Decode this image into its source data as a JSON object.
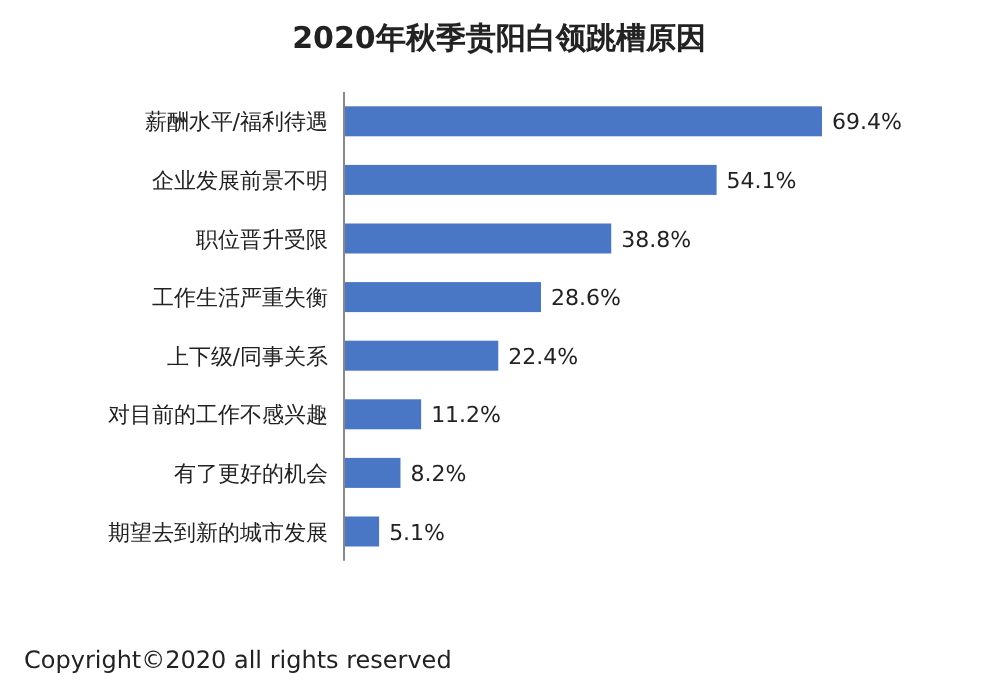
{
  "chart_data": {
    "type": "bar",
    "orientation": "horizontal",
    "title": "2020年秋季贵阳白领跳槽原因",
    "categories": [
      "薪酬水平/福利待遇",
      "企业发展前景不明",
      "职位晋升受限",
      "工作生活严重失衡",
      "上下级/同事关系",
      "对目前的工作不感兴趣",
      "有了更好的机会",
      "期望去到新的城市发展"
    ],
    "values": [
      69.4,
      54.1,
      38.8,
      28.6,
      22.4,
      11.2,
      8.2,
      5.1
    ],
    "value_labels": [
      "69.4%",
      "54.1%",
      "38.8%",
      "28.6%",
      "22.4%",
      "11.2%",
      "8.2%",
      "5.1%"
    ],
    "color": "#4a76c6",
    "annotations": [
      "Copyright©2020 all rights reserved"
    ]
  }
}
